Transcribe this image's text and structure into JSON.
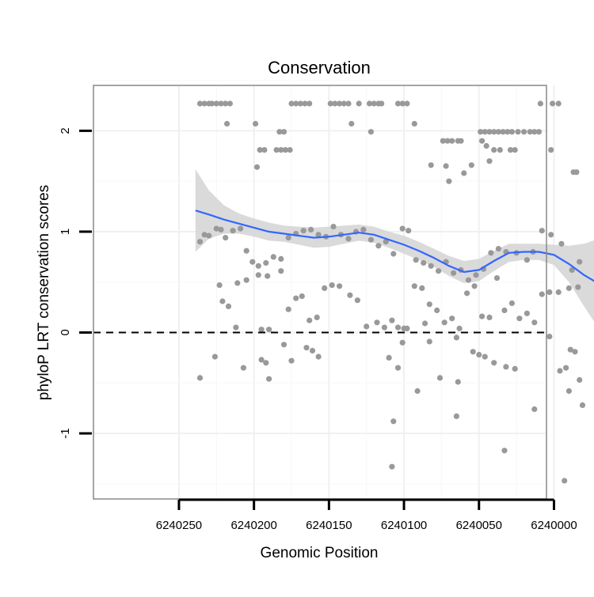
{
  "chart_data": {
    "type": "scatter",
    "title": "Conservation",
    "xlabel": "Genomic Position",
    "ylabel": "phyloP LRT conservation scores",
    "x_reversed": true,
    "xlim": [
      6240005,
      6240307
    ],
    "ylim": [
      -1.65,
      2.45
    ],
    "x_ticks": [
      6240250,
      6240200,
      6240150,
      6240100,
      6240050,
      6240000
    ],
    "x_tick_labels": [
      "6240250",
      "6240200",
      "6240150",
      "6240100",
      "6240050",
      "6240000"
    ],
    "y_ticks": [
      -1,
      0,
      1,
      2
    ],
    "y_tick_labels": [
      "-1",
      "0",
      "1",
      "2"
    ],
    "grid": true,
    "reference_line": {
      "y": 0,
      "style": "dashed"
    },
    "colors": {
      "points": "#999999",
      "smooth_line": "#3366ff",
      "confidence_band": "#d4d4d4",
      "panel_border": "#888888"
    },
    "series": [
      {
        "type": "scatter",
        "points": [
          [
            6240236,
            0.9
          ],
          [
            6240233,
            0.97
          ],
          [
            6240230,
            0.96
          ],
          [
            6240225,
            1.03
          ],
          [
            6240222,
            1.02
          ],
          [
            6240219,
            0.94
          ],
          [
            6240214,
            1.01
          ],
          [
            6240209,
            1.03
          ],
          [
            6240205,
            0.81
          ],
          [
            6240201,
            0.7
          ],
          [
            6240197,
            0.66
          ],
          [
            6240192,
            0.69
          ],
          [
            6240187,
            0.75
          ],
          [
            6240182,
            0.73
          ],
          [
            6240177,
            0.94
          ],
          [
            6240172,
            0.98
          ],
          [
            6240167,
            1.01
          ],
          [
            6240162,
            1.02
          ],
          [
            6240157,
            0.97
          ],
          [
            6240152,
            0.95
          ],
          [
            6240147,
            1.05
          ],
          [
            6240142,
            0.97
          ],
          [
            6240137,
            0.93
          ],
          [
            6240132,
            1.0
          ],
          [
            6240127,
            1.02
          ],
          [
            6240122,
            0.92
          ],
          [
            6240117,
            0.86
          ],
          [
            6240112,
            0.9
          ],
          [
            6240107,
            0.78
          ],
          [
            6240101,
            1.03
          ],
          [
            6240097,
            1.01
          ],
          [
            6240092,
            0.72
          ],
          [
            6240087,
            0.69
          ],
          [
            6240082,
            0.66
          ],
          [
            6240077,
            0.61
          ],
          [
            6240072,
            0.7
          ],
          [
            6240067,
            0.59
          ],
          [
            6240062,
            0.62
          ],
          [
            6240057,
            0.52
          ],
          [
            6240052,
            0.57
          ],
          [
            6240047,
            0.63
          ],
          [
            6240042,
            0.79
          ],
          [
            6240037,
            0.83
          ],
          [
            6240032,
            0.8
          ],
          [
            6240025,
            0.79
          ],
          [
            6240018,
            0.72
          ],
          [
            6240014,
            0.8
          ],
          [
            6240008,
            1.01
          ],
          [
            6240002,
            0.97
          ],
          [
            6239995,
            0.88
          ],
          [
            6239988,
            0.62
          ],
          [
            6239983,
            0.7
          ],
          [
            6240236,
            2.27
          ],
          [
            6240233,
            2.27
          ],
          [
            6240230,
            2.27
          ],
          [
            6240228,
            2.27
          ],
          [
            6240225,
            2.27
          ],
          [
            6240222,
            2.27
          ],
          [
            6240219,
            2.27
          ],
          [
            6240216,
            2.27
          ],
          [
            6240175,
            2.27
          ],
          [
            6240172,
            2.27
          ],
          [
            6240169,
            2.27
          ],
          [
            6240166,
            2.27
          ],
          [
            6240163,
            2.27
          ],
          [
            6240149,
            2.27
          ],
          [
            6240146,
            2.27
          ],
          [
            6240143,
            2.27
          ],
          [
            6240140,
            2.27
          ],
          [
            6240137,
            2.27
          ],
          [
            6240130,
            2.27
          ],
          [
            6240123,
            2.27
          ],
          [
            6240120,
            2.27
          ],
          [
            6240117,
            2.27
          ],
          [
            6240115,
            2.27
          ],
          [
            6240104,
            2.27
          ],
          [
            6240101,
            2.27
          ],
          [
            6240098,
            2.27
          ],
          [
            6240009,
            2.27
          ],
          [
            6240001,
            2.27
          ],
          [
            6239997,
            2.27
          ],
          [
            6240218,
            2.07
          ],
          [
            6240199,
            2.07
          ],
          [
            6240135,
            2.07
          ],
          [
            6240093,
            2.07
          ],
          [
            6240183,
            1.99
          ],
          [
            6240180,
            1.99
          ],
          [
            6240122,
            1.99
          ],
          [
            6240049,
            1.99
          ],
          [
            6240046,
            1.99
          ],
          [
            6240043,
            1.99
          ],
          [
            6240040,
            1.99
          ],
          [
            6240037,
            1.99
          ],
          [
            6240034,
            1.99
          ],
          [
            6240031,
            1.99
          ],
          [
            6240028,
            1.99
          ],
          [
            6240024,
            1.99
          ],
          [
            6240020,
            1.99
          ],
          [
            6240016,
            1.99
          ],
          [
            6240013,
            1.99
          ],
          [
            6240010,
            1.99
          ],
          [
            6240074,
            1.9
          ],
          [
            6240071,
            1.9
          ],
          [
            6240068,
            1.9
          ],
          [
            6240064,
            1.9
          ],
          [
            6240048,
            1.9
          ],
          [
            6240062,
            1.9
          ],
          [
            6240185,
            1.81
          ],
          [
            6240182,
            1.81
          ],
          [
            6240179,
            1.81
          ],
          [
            6240176,
            1.81
          ],
          [
            6240196,
            1.81
          ],
          [
            6240193,
            1.81
          ],
          [
            6240040,
            1.81
          ],
          [
            6240036,
            1.81
          ],
          [
            6240029,
            1.81
          ],
          [
            6240026,
            1.81
          ],
          [
            6240045,
            1.85
          ],
          [
            6240002,
            1.81
          ],
          [
            6240055,
            1.66
          ],
          [
            6240060,
            1.58
          ],
          [
            6240072,
            1.65
          ],
          [
            6240043,
            1.7
          ],
          [
            6239987,
            1.59
          ],
          [
            6239985,
            1.59
          ],
          [
            6240082,
            1.66
          ],
          [
            6240198,
            1.64
          ],
          [
            6240070,
            1.5
          ],
          [
            6240223,
            0.47
          ],
          [
            6240221,
            0.31
          ],
          [
            6240217,
            0.26
          ],
          [
            6240211,
            0.49
          ],
          [
            6240205,
            0.52
          ],
          [
            6240197,
            0.57
          ],
          [
            6240191,
            0.56
          ],
          [
            6240182,
            0.61
          ],
          [
            6240177,
            0.23
          ],
          [
            6240172,
            0.34
          ],
          [
            6240168,
            0.36
          ],
          [
            6240163,
            0.12
          ],
          [
            6240158,
            0.15
          ],
          [
            6240153,
            0.44
          ],
          [
            6240148,
            0.47
          ],
          [
            6240143,
            0.46
          ],
          [
            6240136,
            0.37
          ],
          [
            6240131,
            0.32
          ],
          [
            6240125,
            0.06
          ],
          [
            6240118,
            0.1
          ],
          [
            6240113,
            0.05
          ],
          [
            6240108,
            0.12
          ],
          [
            6240104,
            0.05
          ],
          [
            6240098,
            0.04
          ],
          [
            6240093,
            0.46
          ],
          [
            6240088,
            0.44
          ],
          [
            6240083,
            0.28
          ],
          [
            6240078,
            0.22
          ],
          [
            6240073,
            0.1
          ],
          [
            6240068,
            0.14
          ],
          [
            6240063,
            0.04
          ],
          [
            6240058,
            0.39
          ],
          [
            6240053,
            0.46
          ],
          [
            6240048,
            0.16
          ],
          [
            6240043,
            0.15
          ],
          [
            6240038,
            0.54
          ],
          [
            6240033,
            0.22
          ],
          [
            6240028,
            0.29
          ],
          [
            6240023,
            0.14
          ],
          [
            6240018,
            0.19
          ],
          [
            6240013,
            0.1
          ],
          [
            6240008,
            0.38
          ],
          [
            6240003,
            0.4
          ],
          [
            6239997,
            0.4
          ],
          [
            6239990,
            0.44
          ],
          [
            6239984,
            0.45
          ],
          [
            6240195,
            0.03
          ],
          [
            6240190,
            0.03
          ],
          [
            6240212,
            0.05
          ],
          [
            6240086,
            0.09
          ],
          [
            6240100,
            0.04
          ],
          [
            6240236,
            -0.45
          ],
          [
            6240226,
            -0.24
          ],
          [
            6240207,
            -0.35
          ],
          [
            6240195,
            -0.27
          ],
          [
            6240192,
            -0.3
          ],
          [
            6240190,
            -0.46
          ],
          [
            6240180,
            -0.12
          ],
          [
            6240175,
            -0.28
          ],
          [
            6240165,
            -0.15
          ],
          [
            6240161,
            -0.18
          ],
          [
            6240157,
            -0.24
          ],
          [
            6240110,
            -0.25
          ],
          [
            6240104,
            -0.35
          ],
          [
            6240091,
            -0.58
          ],
          [
            6240083,
            -0.09
          ],
          [
            6240076,
            -0.45
          ],
          [
            6240064,
            -0.49
          ],
          [
            6240054,
            -0.19
          ],
          [
            6240050,
            -0.22
          ],
          [
            6240046,
            -0.24
          ],
          [
            6240040,
            -0.3
          ],
          [
            6240032,
            -0.34
          ],
          [
            6240026,
            -0.36
          ],
          [
            6240013,
            -0.76
          ],
          [
            6240003,
            -0.04
          ],
          [
            6239996,
            -0.38
          ],
          [
            6239990,
            -0.58
          ],
          [
            6239983,
            -0.47
          ],
          [
            6239981,
            -0.72
          ],
          [
            6239986,
            -0.19
          ],
          [
            6239989,
            -0.17
          ],
          [
            6239992,
            -0.35
          ],
          [
            6240101,
            -0.1
          ],
          [
            6240065,
            -0.05
          ],
          [
            6240107,
            -0.88
          ],
          [
            6240065,
            -0.83
          ],
          [
            6240033,
            -1.17
          ],
          [
            6240108,
            -1.33
          ],
          [
            6239993,
            -1.47
          ]
        ]
      },
      {
        "type": "line",
        "name": "",
        "points": [
          [
            6240239,
            1.21
          ],
          [
            6240230,
            1.17
          ],
          [
            6240220,
            1.12
          ],
          [
            6240210,
            1.08
          ],
          [
            6240200,
            1.04
          ],
          [
            6240190,
            1.0
          ],
          [
            6240180,
            0.98
          ],
          [
            6240170,
            0.96
          ],
          [
            6240160,
            0.94
          ],
          [
            6240150,
            0.95
          ],
          [
            6240140,
            0.97
          ],
          [
            6240130,
            0.99
          ],
          [
            6240120,
            0.97
          ],
          [
            6240110,
            0.92
          ],
          [
            6240100,
            0.87
          ],
          [
            6240090,
            0.81
          ],
          [
            6240080,
            0.74
          ],
          [
            6240070,
            0.66
          ],
          [
            6240060,
            0.6
          ],
          [
            6240050,
            0.62
          ],
          [
            6240040,
            0.71
          ],
          [
            6240030,
            0.79
          ],
          [
            6240020,
            0.8
          ],
          [
            6240010,
            0.8
          ],
          [
            6240000,
            0.77
          ],
          [
            6239990,
            0.68
          ],
          [
            6239980,
            0.57
          ],
          [
            6239972,
            0.5
          ]
        ],
        "band_upper": [
          1.62,
          1.41,
          1.26,
          1.18,
          1.13,
          1.09,
          1.06,
          1.05,
          1.04,
          1.05,
          1.06,
          1.07,
          1.05,
          1.0,
          0.96,
          0.9,
          0.83,
          0.76,
          0.71,
          0.73,
          0.81,
          0.88,
          0.88,
          0.88,
          0.87,
          0.86,
          0.88,
          0.92
        ],
        "band_lower": [
          0.8,
          0.93,
          0.98,
          0.98,
          0.95,
          0.91,
          0.9,
          0.87,
          0.84,
          0.85,
          0.88,
          0.91,
          0.89,
          0.84,
          0.78,
          0.72,
          0.65,
          0.56,
          0.49,
          0.51,
          0.61,
          0.7,
          0.72,
          0.72,
          0.67,
          0.5,
          0.26,
          0.08
        ]
      }
    ]
  }
}
